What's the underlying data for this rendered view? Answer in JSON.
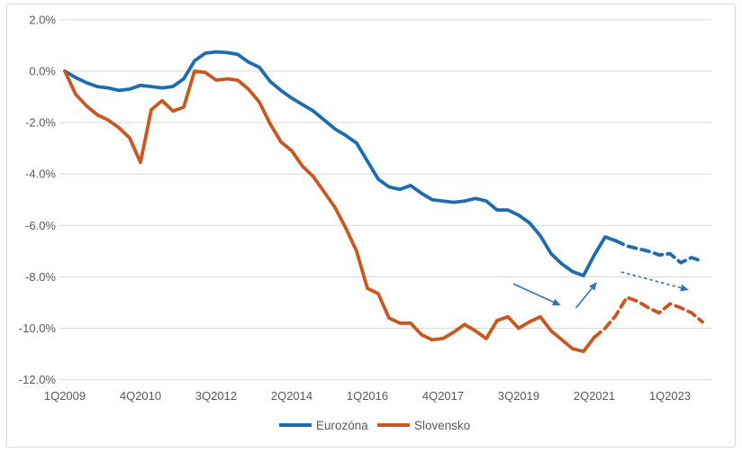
{
  "figure": {
    "background": "#ffffff",
    "border_color": "#d9d9d9",
    "text_color": "#595959",
    "gridline_color": "#d9d9d9"
  },
  "chart_data": {
    "type": "line",
    "title": "",
    "xlabel": "",
    "ylabel": "",
    "grid": "horizontal",
    "legend_position": "bottom",
    "x_axis": {
      "frequency": "quarterly",
      "points_count": 60,
      "first_point_label": "1Q2009",
      "last_point_label": "4Q2023",
      "tick_labels": [
        "1Q2009",
        "4Q2010",
        "3Q2012",
        "2Q2014",
        "1Q2016",
        "4Q2017",
        "3Q2019",
        "2Q2021",
        "1Q2023"
      ],
      "tick_indices": [
        0,
        7,
        14,
        21,
        28,
        35,
        42,
        49,
        56
      ]
    },
    "y_axis": {
      "unit": "%",
      "ylim": [
        -12,
        2
      ],
      "tick_values": [
        2,
        0,
        -2,
        -4,
        -6,
        -8,
        -10,
        -12
      ],
      "tick_labels": [
        "2.0%",
        "0.0%",
        "-2.0%",
        "-4.0%",
        "-6.0%",
        "-8.0%",
        "-10.0%",
        "-12.0%"
      ]
    },
    "series": [
      {
        "name": "Eurozóna",
        "color": "#1e6cb0",
        "dashed_from_index": 51,
        "values": [
          0.0,
          -0.25,
          -0.45,
          -0.6,
          -0.65,
          -0.75,
          -0.7,
          -0.55,
          -0.6,
          -0.65,
          -0.6,
          -0.3,
          0.4,
          0.7,
          0.75,
          0.72,
          0.65,
          0.35,
          0.15,
          -0.4,
          -0.75,
          -1.05,
          -1.3,
          -1.55,
          -1.9,
          -2.25,
          -2.5,
          -2.8,
          -3.5,
          -4.2,
          -4.5,
          -4.6,
          -4.45,
          -4.75,
          -5.0,
          -5.05,
          -5.1,
          -5.05,
          -4.95,
          -5.05,
          -5.4,
          -5.4,
          -5.6,
          -5.9,
          -6.4,
          -7.1,
          -7.5,
          -7.8,
          -7.95,
          -7.15,
          -6.45,
          -6.6,
          -6.8,
          -6.9,
          -7.0,
          -7.15,
          -7.1,
          -7.45,
          -7.25,
          -7.4
        ]
      },
      {
        "name": "Slovensko",
        "color": "#c9571f",
        "dashed_from_index": 49,
        "values": [
          0.0,
          -0.9,
          -1.35,
          -1.7,
          -1.9,
          -2.2,
          -2.6,
          -3.55,
          -1.5,
          -1.15,
          -1.55,
          -1.4,
          0.0,
          -0.05,
          -0.35,
          -0.3,
          -0.35,
          -0.7,
          -1.2,
          -2.05,
          -2.75,
          -3.1,
          -3.7,
          -4.1,
          -4.7,
          -5.3,
          -6.1,
          -7.0,
          -8.45,
          -8.65,
          -9.6,
          -9.8,
          -9.8,
          -10.25,
          -10.45,
          -10.4,
          -10.15,
          -9.85,
          -10.1,
          -10.4,
          -9.7,
          -9.55,
          -10.0,
          -9.75,
          -9.55,
          -10.1,
          -10.45,
          -10.8,
          -10.9,
          -10.35,
          -10.0,
          -9.5,
          -8.8,
          -8.95,
          -9.2,
          -9.4,
          -9.05,
          -9.2,
          -9.4,
          -9.75
        ]
      }
    ],
    "annotations": {
      "arrow_color": "#2e75b6",
      "arrows": [
        {
          "style": "solid",
          "direction": "down-right",
          "from": {
            "x_index": 41.5,
            "value": -8.27
          },
          "to": {
            "x_index": 45.9,
            "value": -9.11
          }
        },
        {
          "style": "solid",
          "direction": "up-right",
          "from": {
            "x_index": 47.3,
            "value": -9.21
          },
          "to": {
            "x_index": 49.25,
            "value": -8.2
          }
        },
        {
          "style": "dashed",
          "direction": "right-down",
          "from": {
            "x_index": 51.5,
            "value": -7.81
          },
          "to": {
            "x_index": 57.75,
            "value": -8.51
          }
        }
      ]
    },
    "legend": [
      {
        "label": "Eurozóna",
        "swatch": "line",
        "color": "#1e6cb0"
      },
      {
        "label": "Slovensko",
        "swatch": "line",
        "color": "#c9571f"
      }
    ]
  }
}
